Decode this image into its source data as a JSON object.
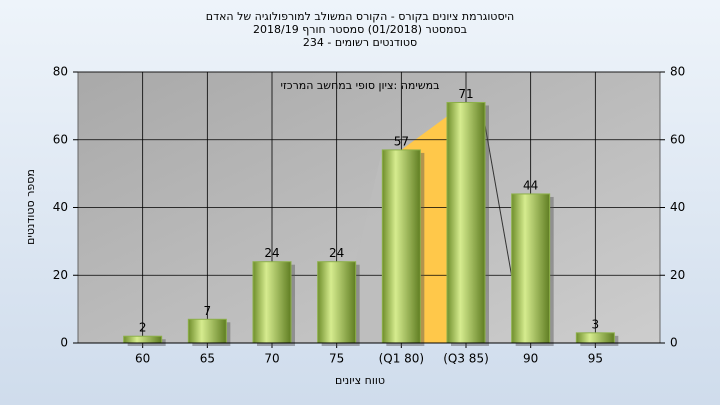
{
  "chart_data": {
    "type": "bar",
    "title": [
      "היסטוגרמת ציונים בקורס - הקורס המשולב למורפולוגיה של האדם",
      "בסמסטר  (01/2018)  סמסטר חורף 2018/19",
      "סטודנטים רשומים - 234"
    ],
    "annotation": "במשימה :ציון סופי במחשב המרכזי",
    "x_label": "טווח ציונים",
    "y_label": "מספר סטודנטים",
    "categories": [
      "60",
      "65",
      "70",
      "75",
      "(Q1 80)",
      "(Q3 85)",
      "90",
      "95"
    ],
    "values": [
      2,
      7,
      24,
      24,
      57,
      71,
      44,
      3
    ],
    "color": "#8db04a",
    "ylim": [
      0,
      80
    ],
    "yticks": [
      0,
      20,
      40,
      60,
      80
    ],
    "y2lim": [
      0,
      80
    ],
    "y2ticks": [
      0,
      20,
      40,
      60,
      80
    ],
    "grid": true
  }
}
